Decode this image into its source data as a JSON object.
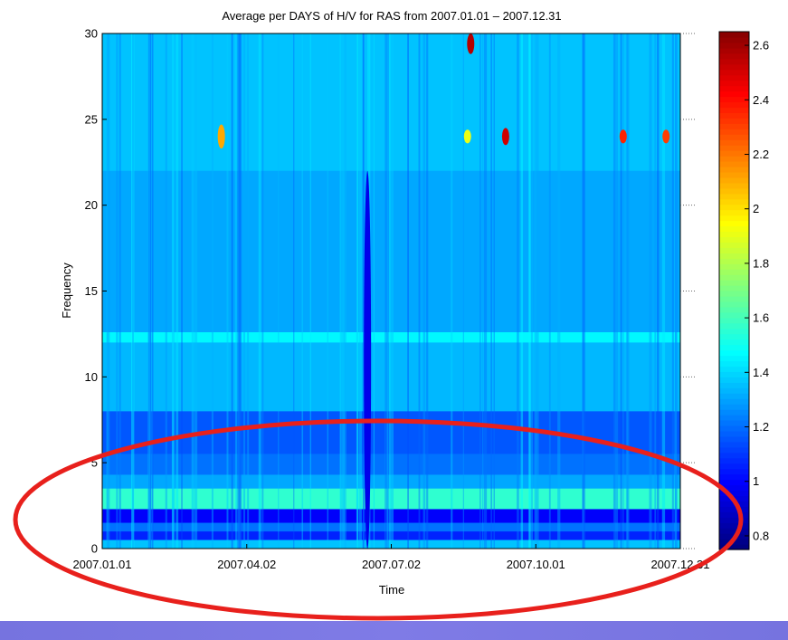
{
  "chart_data": {
    "type": "heatmap",
    "title": "Average per DAYS of H/V for RAS  from 2007.01.01 – 2007.12.31",
    "xlabel": "Time",
    "ylabel": "Frequency",
    "x_tick_labels": [
      "2007.01.01",
      "2007.04.02",
      "2007.07.02",
      "2007.10.01",
      "2007.12.31"
    ],
    "x_range": [
      "2007.01.01",
      "2007.12.31"
    ],
    "y_ticks": [
      0,
      5,
      10,
      15,
      20,
      25,
      30
    ],
    "y_tick_labels": [
      "0",
      "5",
      "10",
      "15",
      "20",
      "25",
      "30"
    ],
    "ylim": [
      0,
      30
    ],
    "colorbar": {
      "ticks": [
        0.8,
        1,
        1.2,
        1.4,
        1.6,
        1.8,
        2,
        2.2,
        2.4,
        2.6
      ],
      "tick_labels": [
        "0.8",
        "1",
        "1.2",
        "1.4",
        "1.6",
        "1.8",
        "2",
        "2.2",
        "2.4",
        "2.6"
      ],
      "range": [
        0.75,
        2.65
      ],
      "colormap": "jet"
    },
    "baseline_value": 1.3,
    "frequency_bands": [
      {
        "f_low": 0.0,
        "f_high": 0.5,
        "value": 1.35
      },
      {
        "f_low": 0.5,
        "f_high": 1.0,
        "value": 1.05
      },
      {
        "f_low": 1.0,
        "f_high": 1.5,
        "value": 1.2
      },
      {
        "f_low": 1.5,
        "f_high": 2.3,
        "value": 0.98
      },
      {
        "f_low": 2.3,
        "f_high": 3.5,
        "value": 1.55
      },
      {
        "f_low": 3.5,
        "f_high": 4.3,
        "value": 1.3
      },
      {
        "f_low": 4.3,
        "f_high": 5.5,
        "value": 1.2
      },
      {
        "f_low": 5.5,
        "f_high": 8.0,
        "value": 1.15
      },
      {
        "f_low": 8.0,
        "f_high": 12.0,
        "value": 1.33
      },
      {
        "f_low": 12.0,
        "f_high": 12.6,
        "value": 1.45
      },
      {
        "f_low": 12.6,
        "f_high": 22.0,
        "value": 1.3
      },
      {
        "f_low": 22.0,
        "f_high": 30.0,
        "value": 1.35
      }
    ],
    "anomalies": [
      {
        "date": "2007.08.21",
        "f_low": 28.8,
        "f_high": 30.0,
        "value": 2.55
      },
      {
        "date": "2007.08.19",
        "f_low": 23.6,
        "f_high": 24.4,
        "value": 1.9
      },
      {
        "date": "2007.09.12",
        "f_low": 23.5,
        "f_high": 24.5,
        "value": 2.5
      },
      {
        "date": "2007.11.25",
        "f_low": 23.6,
        "f_high": 24.4,
        "value": 2.35
      },
      {
        "date": "2007.12.22",
        "f_low": 23.6,
        "f_high": 24.4,
        "value": 2.3
      },
      {
        "date": "2007.03.17",
        "f_low": 23.3,
        "f_high": 24.7,
        "value": 2.1
      },
      {
        "date": "2007.06.17",
        "f_low": 0.0,
        "f_high": 22.0,
        "value": 0.95
      }
    ],
    "annotation": {
      "shape": "ellipse",
      "color": "#e8201c",
      "note": ""
    }
  }
}
